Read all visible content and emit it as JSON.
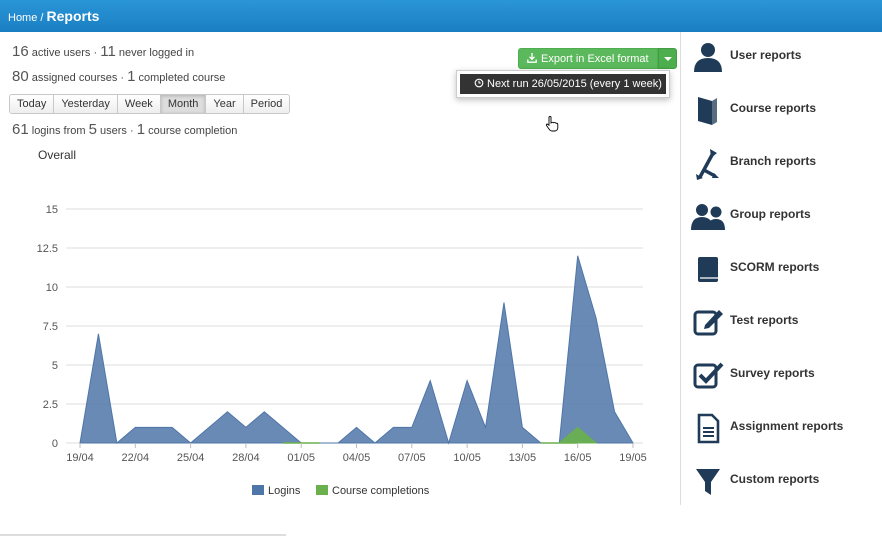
{
  "breadcrumb": {
    "home": "Home",
    "separator": " / ",
    "current": "Reports"
  },
  "stats": {
    "active_users": "16",
    "active_users_label": " active users · ",
    "never_logged": "11",
    "never_logged_label": " never logged in",
    "assigned_courses": "80",
    "assigned_courses_label": " assigned courses · ",
    "completed_courses": "1",
    "completed_courses_label": " completed course",
    "logins": "61",
    "logins_label": " logins from ",
    "users": "5",
    "users_label": " users · ",
    "course_completion": "1",
    "course_completion_label": " course completion"
  },
  "ranges": [
    "Today",
    "Yesterday",
    "Week",
    "Month",
    "Year",
    "Period"
  ],
  "active_range": "Month",
  "export": {
    "label": "Export in Excel format",
    "icon": "download-icon"
  },
  "dropdown": {
    "item": "Next run 26/05/2015 (every 1 week)",
    "icon": "history-icon"
  },
  "colors": {
    "topbar": "#1f88cc",
    "logins": "#4f76a8",
    "completions": "#6ab04c",
    "export": "#5cb85c",
    "icon": "#1f3b57"
  },
  "chart_data": {
    "type": "area",
    "title": "Overall",
    "xlabel": "",
    "ylabel": "",
    "ylim": [
      0,
      15
    ],
    "yticks": [
      "0",
      "2.5",
      "5",
      "7.5",
      "10",
      "12.5",
      "15"
    ],
    "x": [
      "19/04",
      "20/04",
      "21/04",
      "22/04",
      "23/04",
      "24/04",
      "25/04",
      "26/04",
      "27/04",
      "28/04",
      "29/04",
      "30/04",
      "01/05",
      "02/05",
      "03/05",
      "04/05",
      "05/05",
      "06/05",
      "07/05",
      "08/05",
      "09/05",
      "10/05",
      "11/05",
      "12/05",
      "13/05",
      "14/05",
      "15/05",
      "16/05",
      "17/05",
      "18/05",
      "19/05"
    ],
    "xtick_labels": [
      "19/04",
      "22/04",
      "25/04",
      "28/04",
      "01/05",
      "04/05",
      "07/05",
      "10/05",
      "13/05",
      "16/05",
      "19/05"
    ],
    "series": [
      {
        "name": "Logins",
        "color": "#4f76a8",
        "values": [
          0,
          7,
          0,
          1,
          1,
          1,
          0,
          1,
          2,
          1,
          2,
          1,
          0,
          0,
          0,
          1,
          0,
          1,
          1,
          4,
          0,
          4,
          1,
          9,
          1,
          0,
          0,
          12,
          8,
          2,
          0
        ]
      },
      {
        "name": "Course completions",
        "color": "#6ab04c",
        "values": [
          0,
          0,
          0,
          0,
          0,
          0,
          0,
          0,
          0,
          0,
          0,
          0,
          0,
          0,
          0,
          0,
          0,
          0,
          0,
          0,
          0,
          0,
          0,
          0,
          0,
          0,
          0,
          1,
          0,
          0,
          0
        ]
      }
    ],
    "legend": "bottom",
    "grid": true
  },
  "sidebar": {
    "items": [
      {
        "label": "User reports",
        "icon": "user-icon"
      },
      {
        "label": "Course reports",
        "icon": "book-icon"
      },
      {
        "label": "Branch reports",
        "icon": "branch-icon"
      },
      {
        "label": "Group reports",
        "icon": "group-icon"
      },
      {
        "label": "SCORM reports",
        "icon": "scorm-book-icon"
      },
      {
        "label": "Test reports",
        "icon": "edit-icon"
      },
      {
        "label": "Survey reports",
        "icon": "checkbox-icon"
      },
      {
        "label": "Assignment reports",
        "icon": "document-icon"
      },
      {
        "label": "Custom reports",
        "icon": "filter-icon"
      }
    ]
  }
}
